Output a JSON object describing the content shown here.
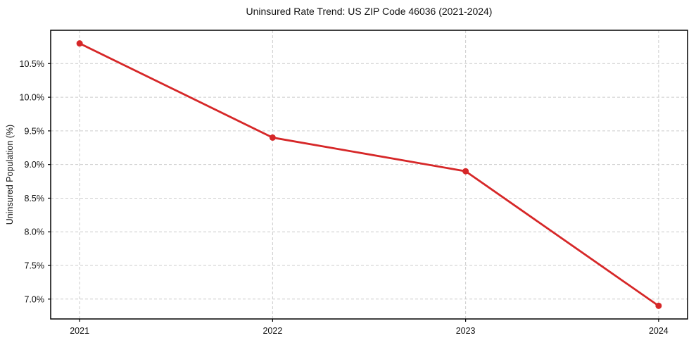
{
  "chart_data": {
    "type": "line",
    "title": "Uninsured Rate Trend: US ZIP Code 46036 (2021-2024)",
    "xlabel": "",
    "ylabel": "Uninsured Population (%)",
    "x": [
      2021,
      2022,
      2023,
      2024
    ],
    "series": [
      {
        "name": "Uninsured Rate",
        "values": [
          10.8,
          9.4,
          8.9,
          6.9
        ]
      }
    ],
    "x_tick_labels": [
      "2021",
      "2022",
      "2023",
      "2024"
    ],
    "y_ticks": [
      7.0,
      7.5,
      8.0,
      8.5,
      9.0,
      9.5,
      10.0,
      10.5
    ],
    "y_tick_labels": [
      "7.0%",
      "7.5%",
      "8.0%",
      "8.5%",
      "9.0%",
      "9.5%",
      "10.0%",
      "10.5%"
    ],
    "xlim": [
      2020.85,
      2024.15
    ],
    "ylim": [
      6.705,
      10.995
    ],
    "grid": true,
    "grid_style": "dashed",
    "legend_position": "none",
    "colors": {
      "line": "#d62728",
      "marker": "#d62728",
      "grid": "#cccccc",
      "axis": "#000000",
      "text": "#111111",
      "background": "#ffffff"
    }
  }
}
